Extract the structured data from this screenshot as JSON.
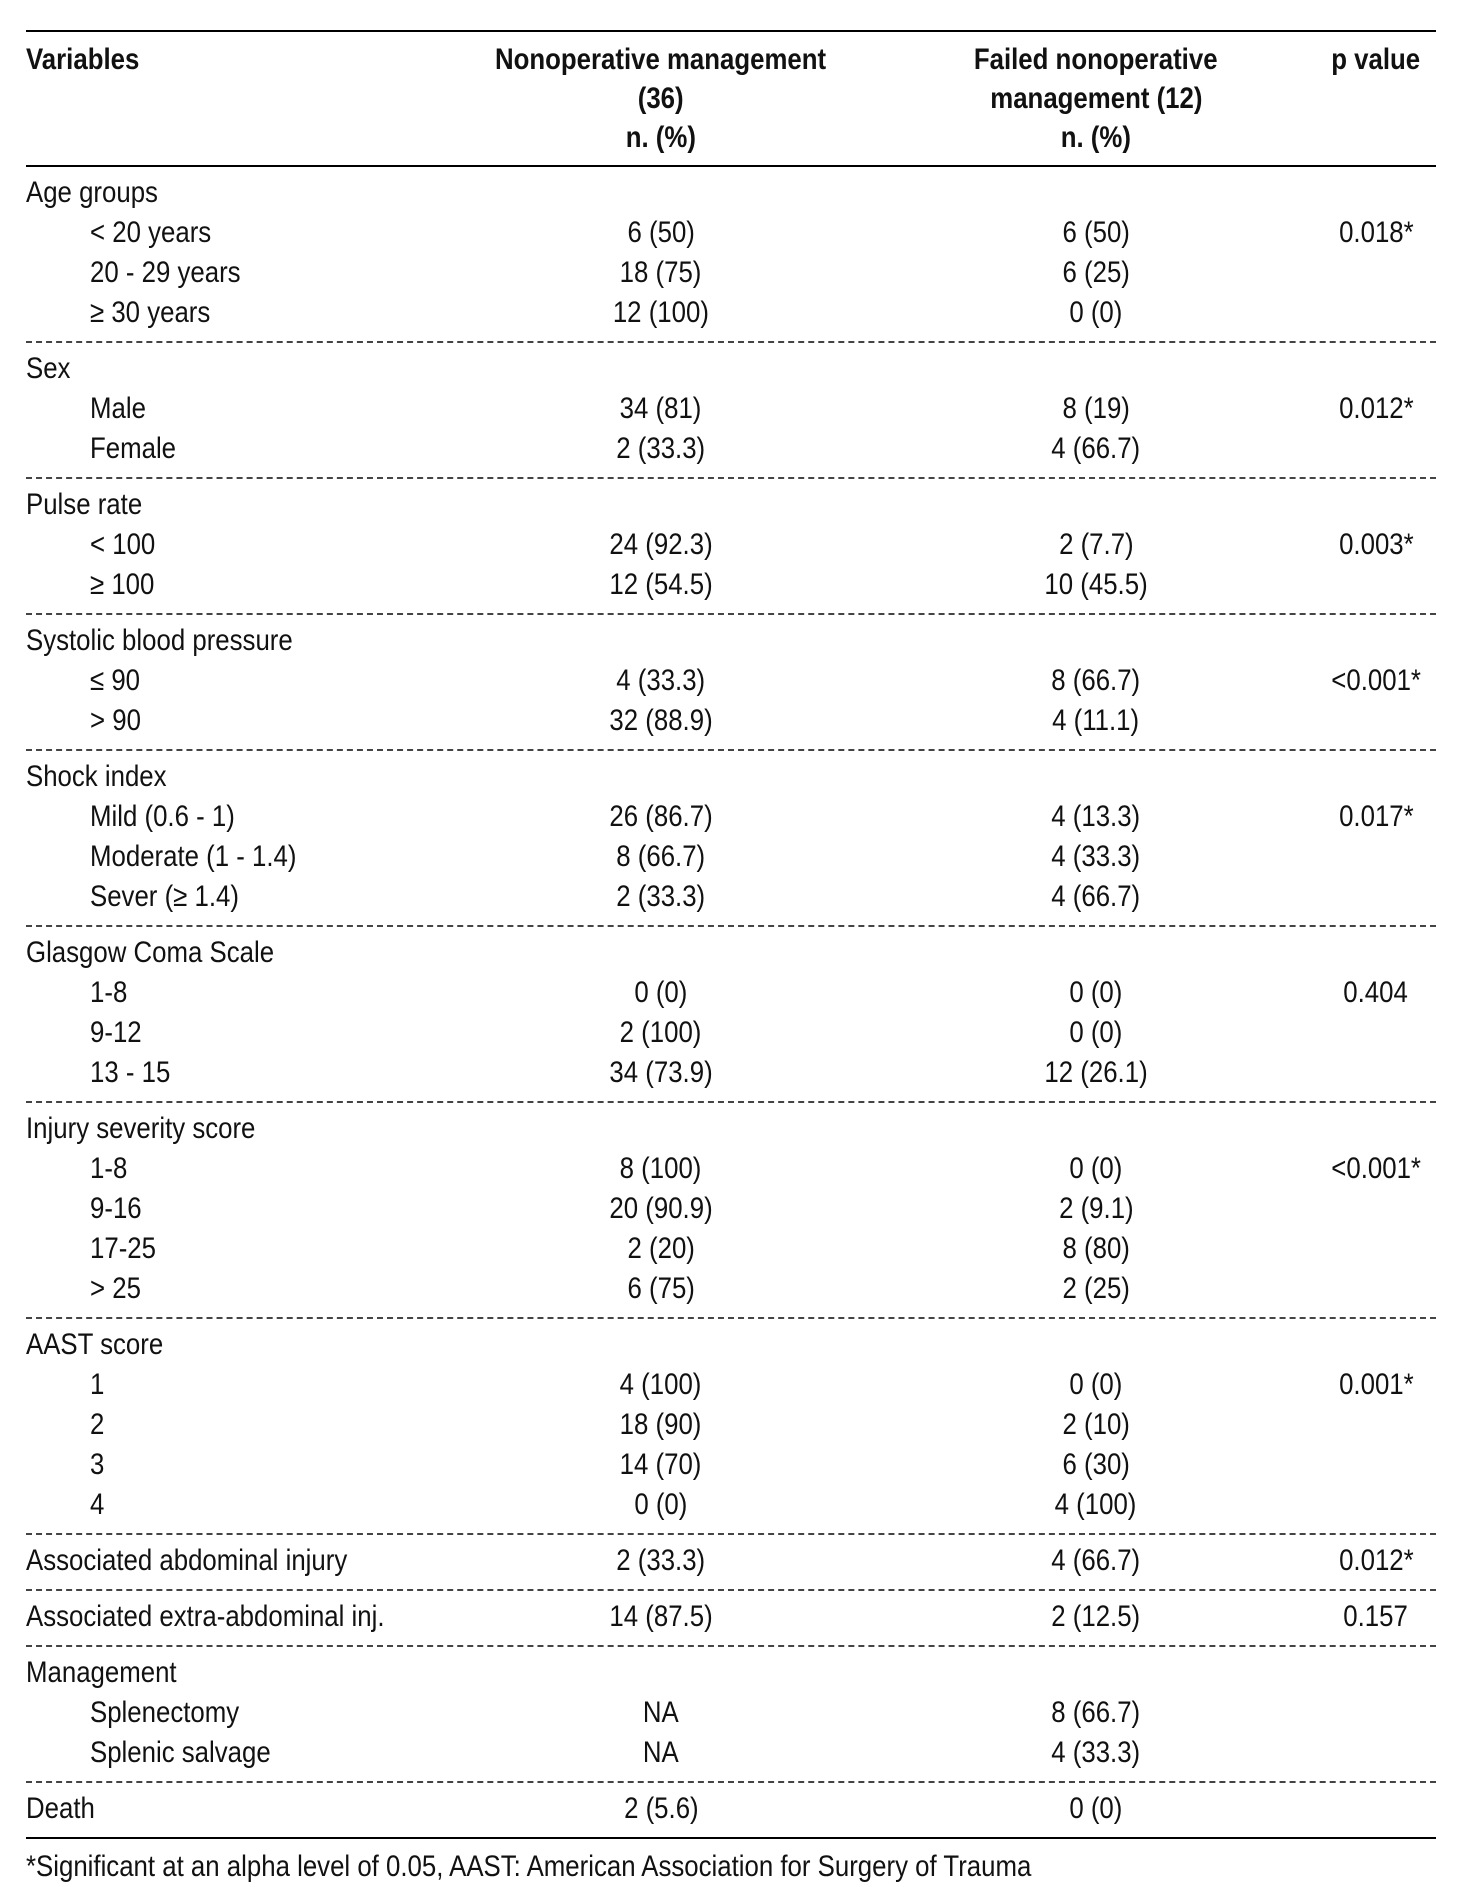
{
  "table": {
    "headers": {
      "variables": "Variables",
      "nonoperative": [
        "Nonoperative management",
        "(36)",
        "n. (%)"
      ],
      "failed": [
        "Failed nonoperative",
        "management (12)",
        "n. (%)"
      ],
      "pvalue": "p value"
    },
    "groups": [
      {
        "title": "Age groups",
        "rows": [
          {
            "label": "< 20 years",
            "nom": "6 (50)",
            "fnom": "6 (50)",
            "p": "0.018*"
          },
          {
            "label": "20 - 29 years",
            "nom": "18 (75)",
            "fnom": "6 (25)",
            "p": ""
          },
          {
            "label": "≥ 30 years",
            "nom": "12 (100)",
            "fnom": "0 (0)",
            "p": ""
          }
        ]
      },
      {
        "title": "Sex",
        "rows": [
          {
            "label": "Male",
            "nom": "34 (81)",
            "fnom": "8 (19)",
            "p": "0.012*"
          },
          {
            "label": "Female",
            "nom": "2 (33.3)",
            "fnom": "4 (66.7)",
            "p": ""
          }
        ]
      },
      {
        "title": "Pulse rate",
        "rows": [
          {
            "label": "< 100",
            "nom": "24 (92.3)",
            "fnom": "2 (7.7)",
            "p": "0.003*"
          },
          {
            "label": "≥ 100",
            "nom": "12 (54.5)",
            "fnom": "10 (45.5)",
            "p": ""
          }
        ]
      },
      {
        "title": "Systolic blood pressure",
        "rows": [
          {
            "label": "≤ 90",
            "nom": "4 (33.3)",
            "fnom": "8 (66.7)",
            "p": "<0.001*"
          },
          {
            "label": "> 90",
            "nom": "32 (88.9)",
            "fnom": "4 (11.1)",
            "p": ""
          }
        ]
      },
      {
        "title": "Shock index",
        "rows": [
          {
            "label": "Mild (0.6 - 1)",
            "nom": "26 (86.7)",
            "fnom": "4 (13.3)",
            "p": "0.017*"
          },
          {
            "label": "Moderate (1 - 1.4)",
            "nom": "8 (66.7)",
            "fnom": "4 (33.3)",
            "p": ""
          },
          {
            "label": "Sever (≥ 1.4)",
            "nom": "2 (33.3)",
            "fnom": "4 (66.7)",
            "p": ""
          }
        ]
      },
      {
        "title": "Glasgow Coma Scale",
        "rows": [
          {
            "label": "1-8",
            "nom": "0 (0)",
            "fnom": "0 (0)",
            "p": "0.404"
          },
          {
            "label": "9-12",
            "nom": "2 (100)",
            "fnom": "0 (0)",
            "p": ""
          },
          {
            "label": "13 - 15",
            "nom": "34 (73.9)",
            "fnom": "12 (26.1)",
            "p": ""
          }
        ]
      },
      {
        "title": "Injury severity score",
        "rows": [
          {
            "label": "1-8",
            "nom": "8 (100)",
            "fnom": "0 (0)",
            "p": "<0.001*"
          },
          {
            "label": "9-16",
            "nom": "20 (90.9)",
            "fnom": "2 (9.1)",
            "p": ""
          },
          {
            "label": "17-25",
            "nom": "2 (20)",
            "fnom": "8 (80)",
            "p": ""
          },
          {
            "label": "> 25",
            "nom": "6 (75)",
            "fnom": "2 (25)",
            "p": ""
          }
        ]
      },
      {
        "title": "AAST score",
        "rows": [
          {
            "label": "1",
            "nom": "4 (100)",
            "fnom": "0 (0)",
            "p": "0.001*"
          },
          {
            "label": "2",
            "nom": "18 (90)",
            "fnom": "2 (10)",
            "p": ""
          },
          {
            "label": "3",
            "nom": "14 (70)",
            "fnom": "6 (30)",
            "p": ""
          },
          {
            "label": "4",
            "nom": "0 (0)",
            "fnom": "4 (100)",
            "p": ""
          }
        ]
      },
      {
        "single": {
          "label": "Associated abdominal injury",
          "nom": "2 (33.3)",
          "fnom": "4 (66.7)",
          "p": "0.012*"
        }
      },
      {
        "single": {
          "label": "Associated extra-abdominal inj.",
          "nom": "14 (87.5)",
          "fnom": "2 (12.5)",
          "p": "0.157"
        }
      },
      {
        "title": "Management",
        "rows": [
          {
            "label": "Splenectomy",
            "nom": "NA",
            "fnom": "8 (66.7)",
            "p": ""
          },
          {
            "label": "Splenic salvage",
            "nom": "NA",
            "fnom": "4 (33.3)",
            "p": ""
          }
        ]
      },
      {
        "single": {
          "label": "Death",
          "nom": "2 (5.6)",
          "fnom": "0 (0)",
          "p": ""
        }
      }
    ],
    "footnote": "*Significant at an alpha level of 0.05, AAST: American Association for Surgery of Trauma"
  }
}
